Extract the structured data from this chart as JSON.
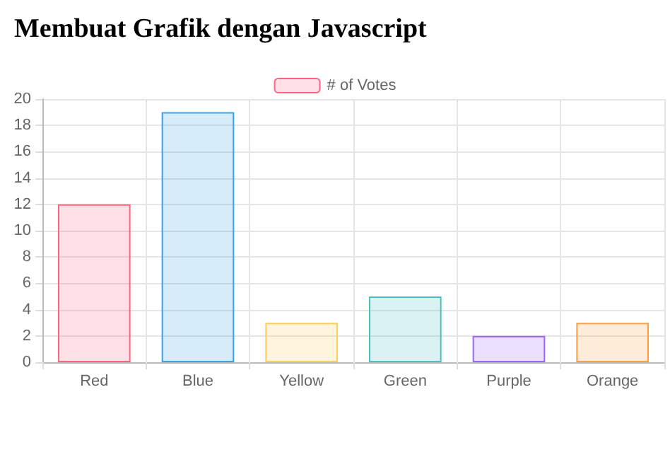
{
  "chart_data": {
    "type": "bar",
    "title": "Membuat Grafik dengan Javascript",
    "categories": [
      "Red",
      "Blue",
      "Yellow",
      "Green",
      "Purple",
      "Orange"
    ],
    "series": [
      {
        "name": "# of Votes",
        "values": [
          12,
          19,
          3,
          5,
          2,
          3
        ],
        "colors": [
          "#ff6384",
          "#36a2eb",
          "#ffce56",
          "#4bc0c0",
          "#9966ff",
          "#ff9f40"
        ]
      }
    ],
    "ylim": [
      0,
      20
    ],
    "yticks": [
      0,
      2,
      4,
      6,
      8,
      10,
      12,
      14,
      16,
      18,
      20
    ],
    "grid": true,
    "legend": "top"
  }
}
